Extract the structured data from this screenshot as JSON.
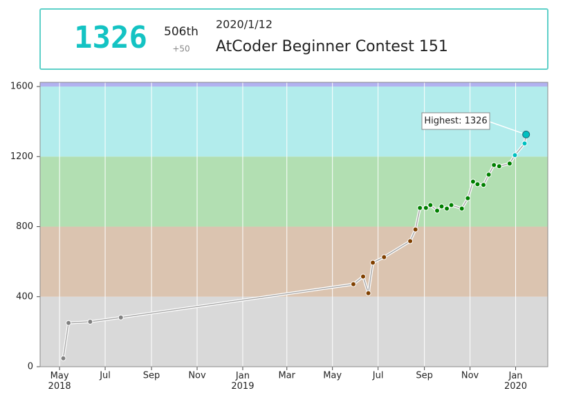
{
  "header": {
    "rating": "1326",
    "rank": "506th",
    "diff": "+50",
    "date": "2020/1/12",
    "contest": "AtCoder Beginner Contest 151"
  },
  "chart_data": {
    "type": "line",
    "x": [
      125,
      132,
      161,
      202,
      513,
      526,
      533,
      539,
      554,
      589,
      596,
      602,
      610,
      616,
      625,
      631,
      638,
      644,
      658,
      666,
      673,
      679,
      687,
      694,
      701,
      708,
      722,
      729,
      742,
      744
    ],
    "values": [
      48,
      250,
      257,
      281,
      471,
      515,
      420,
      594,
      626,
      717,
      784,
      907,
      907,
      923,
      891,
      915,
      903,
      923,
      903,
      962,
      1057,
      1042,
      1038,
      1097,
      1152,
      1145,
      1160,
      1208,
      1275,
      1326
    ],
    "xlim": [
      94,
      773
    ],
    "xticks": [
      {
        "value": 120,
        "label": "May 2018"
      },
      {
        "value": 181,
        "label": "Jul"
      },
      {
        "value": 243,
        "label": "Sep"
      },
      {
        "value": 304,
        "label": "Nov"
      },
      {
        "value": 365,
        "label": "Jan 2019"
      },
      {
        "value": 424,
        "label": "Mar"
      },
      {
        "value": 485,
        "label": "May"
      },
      {
        "value": 546,
        "label": "Jul"
      },
      {
        "value": 608,
        "label": "Sep"
      },
      {
        "value": 669,
        "label": "Nov"
      },
      {
        "value": 730,
        "label": "Jan 2020"
      }
    ],
    "ylim": [
      0,
      1624
    ],
    "yticks": [
      0,
      400,
      800,
      1200,
      1600
    ],
    "grid": true,
    "bands": [
      {
        "from": 0,
        "to": 400,
        "color": "#d9d9d9",
        "point": "#808080"
      },
      {
        "from": 400,
        "to": 800,
        "color": "#dbc4b0",
        "point": "#804000"
      },
      {
        "from": 800,
        "to": 1200,
        "color": "#b2dfb2",
        "point": "#008000"
      },
      {
        "from": 1200,
        "to": 1600,
        "color": "#b2ecec",
        "point": "#00c0c0"
      },
      {
        "from": 1600,
        "to": 1624,
        "color": "#b2b2f0",
        "point": "#0000ff"
      }
    ],
    "line_color": "#aaaaaa",
    "annotation": "Highest: 1326"
  }
}
